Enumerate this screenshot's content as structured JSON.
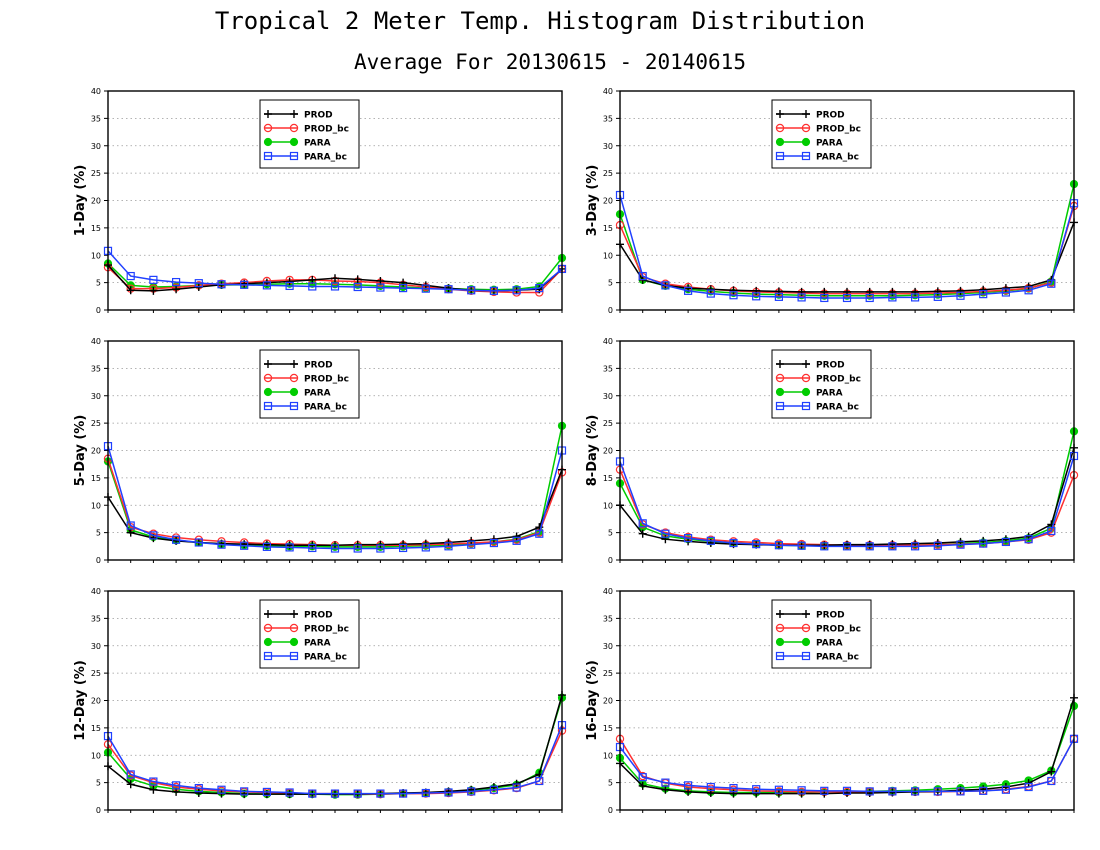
{
  "title": "Tropical 2 Meter Temp. Histogram Distribution",
  "subtitle": "Average For 20130615 - 20140615",
  "colors": {
    "PROD": "#000000",
    "PROD_bc": "#ff3030",
    "PARA": "#00cc00",
    "PARA_bc": "#2040ff"
  },
  "markers": {
    "PROD": "plus-icon",
    "PROD_bc": "open-circle-icon",
    "PARA": "filled-circle-icon",
    "PARA_bc": "open-square-icon"
  },
  "chart_data": [
    {
      "type": "line",
      "ylabel": "1-Day (%)",
      "ylim": [
        0,
        40
      ],
      "yticks": [
        0,
        5,
        10,
        15,
        20,
        25,
        30,
        35,
        40
      ],
      "grid": true,
      "legend": "top-center",
      "x": [
        1,
        2,
        3,
        4,
        5,
        6,
        7,
        8,
        9,
        10,
        11,
        12,
        13,
        14,
        15,
        16,
        17,
        18,
        19,
        20,
        21
      ],
      "series": [
        {
          "name": "PROD",
          "values": [
            8.2,
            3.6,
            3.5,
            3.8,
            4.2,
            4.6,
            4.8,
            5.0,
            5.2,
            5.5,
            5.8,
            5.6,
            5.3,
            5.0,
            4.5,
            4.0,
            3.6,
            3.5,
            3.6,
            3.8,
            7.5
          ]
        },
        {
          "name": "PROD_bc",
          "values": [
            7.8,
            3.9,
            3.9,
            4.1,
            4.5,
            4.8,
            5.0,
            5.3,
            5.5,
            5.5,
            5.3,
            5.2,
            5.0,
            4.6,
            4.2,
            3.8,
            3.5,
            3.3,
            3.2,
            3.2,
            7.5
          ]
        },
        {
          "name": "PARA",
          "values": [
            8.5,
            4.5,
            4.2,
            4.3,
            4.5,
            4.6,
            4.6,
            4.7,
            4.8,
            4.8,
            4.7,
            4.6,
            4.4,
            4.2,
            4.0,
            3.9,
            3.8,
            3.7,
            3.8,
            4.3,
            9.5
          ]
        },
        {
          "name": "PARA_bc",
          "values": [
            10.8,
            6.2,
            5.5,
            5.1,
            4.9,
            4.7,
            4.6,
            4.5,
            4.4,
            4.3,
            4.3,
            4.2,
            4.1,
            4.0,
            3.9,
            3.8,
            3.6,
            3.5,
            3.6,
            4.0,
            7.5
          ]
        }
      ]
    },
    {
      "type": "line",
      "ylabel": "3-Day (%)",
      "ylim": [
        0,
        40
      ],
      "yticks": [
        0,
        5,
        10,
        15,
        20,
        25,
        30,
        35,
        40
      ],
      "grid": true,
      "legend": "top-center",
      "x": [
        1,
        2,
        3,
        4,
        5,
        6,
        7,
        8,
        9,
        10,
        11,
        12,
        13,
        14,
        15,
        16,
        17,
        18,
        19,
        20,
        21
      ],
      "series": [
        {
          "name": "PROD",
          "values": [
            12.0,
            5.5,
            4.5,
            4.0,
            3.8,
            3.6,
            3.5,
            3.4,
            3.3,
            3.3,
            3.3,
            3.3,
            3.3,
            3.3,
            3.4,
            3.5,
            3.7,
            4.0,
            4.3,
            5.5,
            16.0
          ]
        },
        {
          "name": "PROD_bc",
          "values": [
            15.5,
            6.0,
            4.8,
            4.2,
            3.8,
            3.5,
            3.3,
            3.2,
            3.1,
            3.0,
            3.0,
            3.0,
            3.0,
            3.0,
            3.1,
            3.2,
            3.4,
            3.6,
            4.0,
            5.0,
            19.0
          ]
        },
        {
          "name": "PARA",
          "values": [
            17.5,
            5.5,
            4.4,
            3.8,
            3.4,
            3.1,
            2.9,
            2.8,
            2.7,
            2.6,
            2.6,
            2.6,
            2.6,
            2.7,
            2.8,
            3.0,
            3.2,
            3.5,
            3.9,
            5.2,
            23.0
          ]
        },
        {
          "name": "PARA_bc",
          "values": [
            21.0,
            6.2,
            4.5,
            3.5,
            3.0,
            2.7,
            2.5,
            2.4,
            2.3,
            2.2,
            2.2,
            2.2,
            2.3,
            2.3,
            2.4,
            2.6,
            2.9,
            3.2,
            3.6,
            4.8,
            19.5
          ]
        }
      ]
    },
    {
      "type": "line",
      "ylabel": "5-Day (%)",
      "ylim": [
        0,
        40
      ],
      "yticks": [
        0,
        5,
        10,
        15,
        20,
        25,
        30,
        35,
        40
      ],
      "grid": true,
      "legend": "top-center",
      "x": [
        1,
        2,
        3,
        4,
        5,
        6,
        7,
        8,
        9,
        10,
        11,
        12,
        13,
        14,
        15,
        16,
        17,
        18,
        19,
        20,
        21
      ],
      "series": [
        {
          "name": "PROD",
          "values": [
            11.5,
            5.0,
            4.0,
            3.5,
            3.2,
            3.0,
            2.9,
            2.8,
            2.7,
            2.7,
            2.7,
            2.8,
            2.8,
            2.9,
            3.0,
            3.2,
            3.5,
            3.8,
            4.3,
            6.0,
            16.5
          ]
        },
        {
          "name": "PROD_bc",
          "values": [
            18.5,
            6.0,
            4.8,
            4.1,
            3.7,
            3.4,
            3.2,
            3.0,
            2.9,
            2.8,
            2.7,
            2.7,
            2.7,
            2.7,
            2.8,
            2.9,
            3.1,
            3.3,
            3.7,
            5.0,
            16.0
          ]
        },
        {
          "name": "PARA",
          "values": [
            18.0,
            5.5,
            4.2,
            3.6,
            3.2,
            2.9,
            2.7,
            2.6,
            2.5,
            2.5,
            2.4,
            2.4,
            2.4,
            2.5,
            2.6,
            2.7,
            3.0,
            3.3,
            3.8,
            5.2,
            24.5
          ]
        },
        {
          "name": "PARA_bc",
          "values": [
            20.8,
            6.3,
            4.5,
            3.7,
            3.2,
            2.8,
            2.6,
            2.4,
            2.3,
            2.2,
            2.1,
            2.1,
            2.1,
            2.2,
            2.3,
            2.5,
            2.8,
            3.1,
            3.5,
            4.8,
            20.0
          ]
        }
      ]
    },
    {
      "type": "line",
      "ylabel": "8-Day (%)",
      "ylim": [
        0,
        40
      ],
      "yticks": [
        0,
        5,
        10,
        15,
        20,
        25,
        30,
        35,
        40
      ],
      "grid": true,
      "legend": "top-center",
      "x": [
        1,
        2,
        3,
        4,
        5,
        6,
        7,
        8,
        9,
        10,
        11,
        12,
        13,
        14,
        15,
        16,
        17,
        18,
        19,
        20,
        21
      ],
      "series": [
        {
          "name": "PROD",
          "values": [
            10.0,
            4.8,
            3.8,
            3.4,
            3.1,
            2.9,
            2.8,
            2.7,
            2.7,
            2.7,
            2.8,
            2.8,
            2.9,
            3.0,
            3.1,
            3.3,
            3.5,
            3.8,
            4.3,
            6.5,
            20.5
          ]
        },
        {
          "name": "PROD_bc",
          "values": [
            16.5,
            6.5,
            5.0,
            4.2,
            3.7,
            3.4,
            3.2,
            3.0,
            2.9,
            2.8,
            2.7,
            2.7,
            2.7,
            2.7,
            2.8,
            2.9,
            3.0,
            3.3,
            3.7,
            5.0,
            15.5
          ]
        },
        {
          "name": "PARA",
          "values": [
            14.0,
            6.0,
            4.4,
            3.8,
            3.4,
            3.1,
            2.9,
            2.7,
            2.6,
            2.6,
            2.6,
            2.6,
            2.6,
            2.7,
            2.8,
            3.0,
            3.2,
            3.5,
            4.0,
            5.8,
            23.5
          ]
        },
        {
          "name": "PARA_bc",
          "values": [
            18.0,
            6.7,
            4.8,
            4.0,
            3.5,
            3.1,
            2.9,
            2.7,
            2.6,
            2.5,
            2.5,
            2.5,
            2.5,
            2.5,
            2.6,
            2.8,
            3.0,
            3.3,
            3.8,
            5.3,
            19.0
          ]
        }
      ]
    },
    {
      "type": "line",
      "ylabel": "12-Day (%)",
      "ylim": [
        0,
        40
      ],
      "yticks": [
        0,
        5,
        10,
        15,
        20,
        25,
        30,
        35,
        40
      ],
      "grid": true,
      "legend": "top-center",
      "x": [
        1,
        2,
        3,
        4,
        5,
        6,
        7,
        8,
        9,
        10,
        11,
        12,
        13,
        14,
        15,
        16,
        17,
        18,
        19,
        20,
        21
      ],
      "series": [
        {
          "name": "PROD",
          "values": [
            8.0,
            4.7,
            3.7,
            3.3,
            3.1,
            3.0,
            2.9,
            2.9,
            2.9,
            2.9,
            2.9,
            2.9,
            3.0,
            3.1,
            3.2,
            3.4,
            3.7,
            4.2,
            4.8,
            6.5,
            21.0
          ]
        },
        {
          "name": "PROD_bc",
          "values": [
            12.0,
            6.3,
            5.0,
            4.2,
            3.8,
            3.5,
            3.3,
            3.2,
            3.1,
            3.0,
            3.0,
            2.9,
            2.9,
            3.0,
            3.0,
            3.1,
            3.3,
            3.6,
            4.0,
            5.3,
            14.5
          ]
        },
        {
          "name": "PARA",
          "values": [
            10.5,
            5.7,
            4.4,
            3.8,
            3.4,
            3.2,
            3.0,
            2.9,
            2.9,
            2.9,
            2.8,
            2.8,
            2.9,
            3.0,
            3.1,
            3.3,
            3.6,
            4.0,
            4.6,
            6.8,
            20.5
          ]
        },
        {
          "name": "PARA_bc",
          "values": [
            13.5,
            6.5,
            5.2,
            4.5,
            4.0,
            3.7,
            3.4,
            3.3,
            3.2,
            3.0,
            3.0,
            3.0,
            3.0,
            3.0,
            3.1,
            3.2,
            3.4,
            3.7,
            4.1,
            5.3,
            15.5
          ]
        }
      ]
    },
    {
      "type": "line",
      "ylabel": "16-Day (%)",
      "ylim": [
        0,
        40
      ],
      "yticks": [
        0,
        5,
        10,
        15,
        20,
        25,
        30,
        35,
        40
      ],
      "grid": true,
      "legend": "top-center",
      "x": [
        1,
        2,
        3,
        4,
        5,
        6,
        7,
        8,
        9,
        10,
        11,
        12,
        13,
        14,
        15,
        16,
        17,
        18,
        19,
        20,
        21
      ],
      "series": [
        {
          "name": "PROD",
          "values": [
            8.5,
            4.4,
            3.7,
            3.3,
            3.1,
            3.0,
            3.0,
            3.0,
            3.0,
            3.0,
            3.1,
            3.1,
            3.2,
            3.3,
            3.4,
            3.6,
            3.8,
            4.2,
            4.9,
            7.0,
            20.5
          ]
        },
        {
          "name": "PROD_bc",
          "values": [
            13.0,
            6.2,
            4.9,
            4.2,
            3.9,
            3.7,
            3.5,
            3.4,
            3.3,
            3.3,
            3.3,
            3.3,
            3.3,
            3.3,
            3.3,
            3.4,
            3.5,
            3.8,
            4.3,
            5.3,
            13.0
          ]
        },
        {
          "name": "PARA",
          "values": [
            9.5,
            4.8,
            3.9,
            3.5,
            3.3,
            3.2,
            3.2,
            3.2,
            3.2,
            3.3,
            3.3,
            3.4,
            3.5,
            3.6,
            3.8,
            4.0,
            4.3,
            4.7,
            5.4,
            7.2,
            19.0
          ]
        },
        {
          "name": "PARA_bc",
          "values": [
            11.5,
            6.0,
            5.0,
            4.5,
            4.2,
            4.0,
            3.8,
            3.7,
            3.6,
            3.5,
            3.5,
            3.4,
            3.4,
            3.4,
            3.4,
            3.4,
            3.5,
            3.7,
            4.2,
            5.3,
            13.0
          ]
        }
      ]
    }
  ]
}
